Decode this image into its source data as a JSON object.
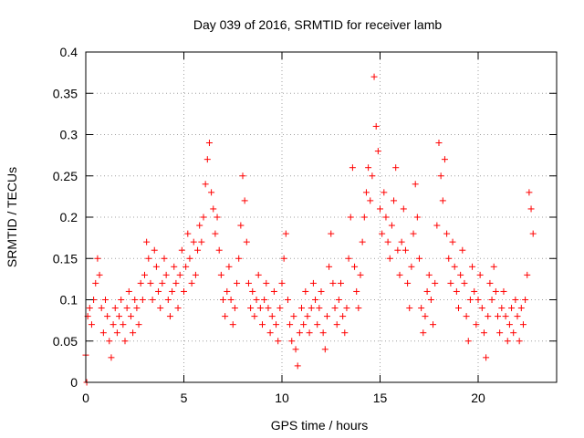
{
  "chart_data": {
    "type": "scatter",
    "title": "Day 039 of 2016, SRMTID for receiver lamb",
    "xlabel": "GPS time / hours",
    "ylabel": "SRMTID / TECUs",
    "xlim": [
      0,
      24
    ],
    "ylim": [
      0,
      0.4
    ],
    "xticks": [
      0,
      5,
      10,
      15,
      20
    ],
    "xtick_labels": [
      "0",
      "5",
      "10",
      "15",
      "20"
    ],
    "yticks": [
      0,
      0.05,
      0.1,
      0.15,
      0.2,
      0.25,
      0.3,
      0.35,
      0.4
    ],
    "ytick_labels": [
      "0",
      "0.05",
      "0.1",
      "0.15",
      "0.2",
      "0.25",
      "0.3",
      "0.35",
      "0.4"
    ],
    "grid": true,
    "marker": "plus",
    "series": [
      {
        "name": "SRMTID",
        "color": "#ff0000",
        "points": [
          [
            0.0,
            0.033
          ],
          [
            0.05,
            0.0
          ],
          [
            0.1,
            0.08
          ],
          [
            0.2,
            0.09
          ],
          [
            0.3,
            0.07
          ],
          [
            0.4,
            0.1
          ],
          [
            0.5,
            0.12
          ],
          [
            0.6,
            0.15
          ],
          [
            0.7,
            0.13
          ],
          [
            0.8,
            0.09
          ],
          [
            0.9,
            0.06
          ],
          [
            1.0,
            0.1
          ],
          [
            1.1,
            0.08
          ],
          [
            1.2,
            0.05
          ],
          [
            1.3,
            0.03
          ],
          [
            1.4,
            0.07
          ],
          [
            1.5,
            0.09
          ],
          [
            1.6,
            0.06
          ],
          [
            1.7,
            0.08
          ],
          [
            1.8,
            0.1
          ],
          [
            1.9,
            0.07
          ],
          [
            2.0,
            0.05
          ],
          [
            2.1,
            0.09
          ],
          [
            2.2,
            0.11
          ],
          [
            2.3,
            0.08
          ],
          [
            2.4,
            0.06
          ],
          [
            2.5,
            0.1
          ],
          [
            2.6,
            0.09
          ],
          [
            2.7,
            0.07
          ],
          [
            2.8,
            0.12
          ],
          [
            2.9,
            0.1
          ],
          [
            3.0,
            0.13
          ],
          [
            3.1,
            0.17
          ],
          [
            3.2,
            0.15
          ],
          [
            3.3,
            0.12
          ],
          [
            3.4,
            0.1
          ],
          [
            3.5,
            0.16
          ],
          [
            3.6,
            0.14
          ],
          [
            3.7,
            0.11
          ],
          [
            3.8,
            0.09
          ],
          [
            3.9,
            0.12
          ],
          [
            4.0,
            0.15
          ],
          [
            4.1,
            0.13
          ],
          [
            4.2,
            0.1
          ],
          [
            4.3,
            0.08
          ],
          [
            4.4,
            0.11
          ],
          [
            4.5,
            0.14
          ],
          [
            4.6,
            0.12
          ],
          [
            4.7,
            0.09
          ],
          [
            4.8,
            0.13
          ],
          [
            4.9,
            0.16
          ],
          [
            5.0,
            0.11
          ],
          [
            5.1,
            0.14
          ],
          [
            5.2,
            0.18
          ],
          [
            5.3,
            0.15
          ],
          [
            5.4,
            0.12
          ],
          [
            5.5,
            0.17
          ],
          [
            5.6,
            0.13
          ],
          [
            5.7,
            0.16
          ],
          [
            5.8,
            0.19
          ],
          [
            5.9,
            0.17
          ],
          [
            6.0,
            0.2
          ],
          [
            6.1,
            0.24
          ],
          [
            6.2,
            0.27
          ],
          [
            6.3,
            0.29
          ],
          [
            6.4,
            0.23
          ],
          [
            6.5,
            0.21
          ],
          [
            6.6,
            0.18
          ],
          [
            6.7,
            0.2
          ],
          [
            6.8,
            0.16
          ],
          [
            6.9,
            0.13
          ],
          [
            7.0,
            0.1
          ],
          [
            7.1,
            0.08
          ],
          [
            7.2,
            0.11
          ],
          [
            7.3,
            0.14
          ],
          [
            7.4,
            0.1
          ],
          [
            7.5,
            0.07
          ],
          [
            7.6,
            0.09
          ],
          [
            7.7,
            0.12
          ],
          [
            7.8,
            0.15
          ],
          [
            7.9,
            0.19
          ],
          [
            8.0,
            0.25
          ],
          [
            8.1,
            0.22
          ],
          [
            8.2,
            0.17
          ],
          [
            8.3,
            0.12
          ],
          [
            8.4,
            0.09
          ],
          [
            8.5,
            0.11
          ],
          [
            8.6,
            0.08
          ],
          [
            8.7,
            0.1
          ],
          [
            8.8,
            0.13
          ],
          [
            8.9,
            0.09
          ],
          [
            9.0,
            0.07
          ],
          [
            9.1,
            0.1
          ],
          [
            9.2,
            0.12
          ],
          [
            9.3,
            0.09
          ],
          [
            9.4,
            0.06
          ],
          [
            9.5,
            0.08
          ],
          [
            9.6,
            0.11
          ],
          [
            9.7,
            0.07
          ],
          [
            9.8,
            0.05
          ],
          [
            9.9,
            0.09
          ],
          [
            10.0,
            0.12
          ],
          [
            10.1,
            0.15
          ],
          [
            10.2,
            0.18
          ],
          [
            10.3,
            0.1
          ],
          [
            10.4,
            0.07
          ],
          [
            10.5,
            0.05
          ],
          [
            10.6,
            0.08
          ],
          [
            10.7,
            0.04
          ],
          [
            10.8,
            0.02
          ],
          [
            10.9,
            0.06
          ],
          [
            11.0,
            0.09
          ],
          [
            11.1,
            0.07
          ],
          [
            11.2,
            0.11
          ],
          [
            11.3,
            0.08
          ],
          [
            11.4,
            0.06
          ],
          [
            11.5,
            0.09
          ],
          [
            11.6,
            0.12
          ],
          [
            11.7,
            0.1
          ],
          [
            11.8,
            0.07
          ],
          [
            11.9,
            0.09
          ],
          [
            12.0,
            0.11
          ],
          [
            12.1,
            0.06
          ],
          [
            12.2,
            0.04
          ],
          [
            12.3,
            0.08
          ],
          [
            12.4,
            0.14
          ],
          [
            12.5,
            0.18
          ],
          [
            12.6,
            0.12
          ],
          [
            12.7,
            0.09
          ],
          [
            12.8,
            0.07
          ],
          [
            12.9,
            0.1
          ],
          [
            13.0,
            0.12
          ],
          [
            13.1,
            0.08
          ],
          [
            13.2,
            0.06
          ],
          [
            13.3,
            0.09
          ],
          [
            13.4,
            0.15
          ],
          [
            13.5,
            0.2
          ],
          [
            13.6,
            0.26
          ],
          [
            13.7,
            0.14
          ],
          [
            13.8,
            0.11
          ],
          [
            13.9,
            0.09
          ],
          [
            14.0,
            0.13
          ],
          [
            14.1,
            0.17
          ],
          [
            14.2,
            0.2
          ],
          [
            14.3,
            0.23
          ],
          [
            14.4,
            0.26
          ],
          [
            14.5,
            0.22
          ],
          [
            14.6,
            0.25
          ],
          [
            14.7,
            0.37
          ],
          [
            14.8,
            0.31
          ],
          [
            14.9,
            0.28
          ],
          [
            15.0,
            0.21
          ],
          [
            15.1,
            0.18
          ],
          [
            15.2,
            0.23
          ],
          [
            15.3,
            0.2
          ],
          [
            15.4,
            0.17
          ],
          [
            15.5,
            0.15
          ],
          [
            15.6,
            0.19
          ],
          [
            15.7,
            0.22
          ],
          [
            15.8,
            0.26
          ],
          [
            15.9,
            0.16
          ],
          [
            16.0,
            0.13
          ],
          [
            16.1,
            0.17
          ],
          [
            16.2,
            0.21
          ],
          [
            16.3,
            0.16
          ],
          [
            16.4,
            0.12
          ],
          [
            16.5,
            0.09
          ],
          [
            16.6,
            0.14
          ],
          [
            16.7,
            0.18
          ],
          [
            16.8,
            0.24
          ],
          [
            16.9,
            0.2
          ],
          [
            17.0,
            0.15
          ],
          [
            17.1,
            0.09
          ],
          [
            17.2,
            0.06
          ],
          [
            17.3,
            0.08
          ],
          [
            17.4,
            0.11
          ],
          [
            17.5,
            0.13
          ],
          [
            17.6,
            0.1
          ],
          [
            17.7,
            0.07
          ],
          [
            17.8,
            0.12
          ],
          [
            17.9,
            0.19
          ],
          [
            18.0,
            0.29
          ],
          [
            18.1,
            0.25
          ],
          [
            18.2,
            0.22
          ],
          [
            18.3,
            0.27
          ],
          [
            18.4,
            0.18
          ],
          [
            18.5,
            0.15
          ],
          [
            18.6,
            0.12
          ],
          [
            18.7,
            0.17
          ],
          [
            18.8,
            0.14
          ],
          [
            18.9,
            0.11
          ],
          [
            19.0,
            0.09
          ],
          [
            19.1,
            0.13
          ],
          [
            19.2,
            0.16
          ],
          [
            19.3,
            0.12
          ],
          [
            19.4,
            0.08
          ],
          [
            19.5,
            0.05
          ],
          [
            19.6,
            0.1
          ],
          [
            19.7,
            0.14
          ],
          [
            19.8,
            0.11
          ],
          [
            19.9,
            0.07
          ],
          [
            20.0,
            0.1
          ],
          [
            20.1,
            0.13
          ],
          [
            20.2,
            0.09
          ],
          [
            20.3,
            0.06
          ],
          [
            20.4,
            0.03
          ],
          [
            20.5,
            0.08
          ],
          [
            20.6,
            0.12
          ],
          [
            20.7,
            0.1
          ],
          [
            20.8,
            0.14
          ],
          [
            20.9,
            0.11
          ],
          [
            21.0,
            0.08
          ],
          [
            21.1,
            0.06
          ],
          [
            21.2,
            0.09
          ],
          [
            21.3,
            0.11
          ],
          [
            21.4,
            0.08
          ],
          [
            21.5,
            0.05
          ],
          [
            21.6,
            0.07
          ],
          [
            21.7,
            0.09
          ],
          [
            21.8,
            0.06
          ],
          [
            21.9,
            0.1
          ],
          [
            22.0,
            0.08
          ],
          [
            22.1,
            0.05
          ],
          [
            22.2,
            0.09
          ],
          [
            22.3,
            0.07
          ],
          [
            22.4,
            0.1
          ],
          [
            22.5,
            0.13
          ],
          [
            22.6,
            0.23
          ],
          [
            22.7,
            0.21
          ],
          [
            22.8,
            0.18
          ]
        ]
      }
    ]
  }
}
